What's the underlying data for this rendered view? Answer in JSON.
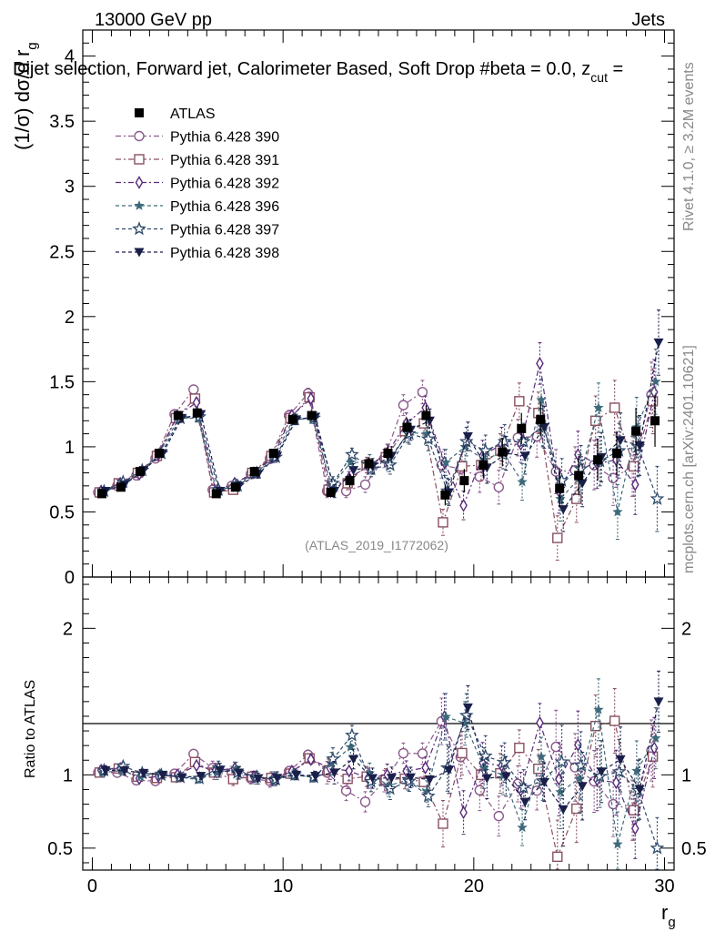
{
  "header": {
    "energy": "13000 GeV pp",
    "category": "Jets",
    "title": "Dijet selection, Forward jet, Calorimeter Based, Soft Drop #beta = 0.0, z",
    "title_sub": "cut",
    "title_tail": " = ",
    "side_rivet": "Rivet 4.1.0, ≥ 3.2M events",
    "side_mcplots": "mcplots.cern.ch [arXiv:2401.10621]",
    "watermark": "(ATLAS_2019_I1772062)"
  },
  "chart_data": {
    "type": "scatter",
    "xlabel": "r",
    "xlabel_sub": "g",
    "ylabel_main": "(1/σ) dσ/d r",
    "ylabel_main_sub": "g",
    "ylabel_ratio": "Ratio to ATLAS",
    "xlim": [
      -0.5,
      30.5
    ],
    "ylim_main": [
      0,
      4.2
    ],
    "ylim_ratio": [
      0.35,
      2.35
    ],
    "x_ticks": [
      "0",
      "10",
      "20",
      "30"
    ],
    "y_ticks_main": [
      "0",
      "0.5",
      "1",
      "1.5",
      "2",
      "2.5",
      "3",
      "3.5",
      "4"
    ],
    "y_ticks_ratio": [
      "0.5",
      "1",
      "2"
    ],
    "x": [
      0.5,
      1.5,
      2.5,
      3.5,
      4.5,
      5.5,
      6.5,
      7.5,
      8.5,
      9.5,
      10.5,
      11.5,
      12.5,
      13.5,
      14.5,
      15.5,
      16.5,
      17.5,
      18.5,
      19.5,
      20.5,
      21.5,
      22.5,
      23.5,
      24.5,
      25.5,
      26.5,
      27.5,
      28.5,
      29.5
    ],
    "data": {
      "name": "ATLAS",
      "values": [
        0.64,
        0.69,
        0.81,
        0.95,
        1.24,
        1.26,
        0.64,
        0.69,
        0.81,
        0.95,
        1.21,
        1.24,
        0.65,
        0.74,
        0.87,
        0.95,
        1.15,
        1.24,
        0.63,
        0.74,
        0.86,
        0.96,
        1.14,
        1.21,
        0.68,
        0.78,
        0.9,
        0.95,
        1.12,
        1.2
      ],
      "errors": [
        0.02,
        0.02,
        0.02,
        0.02,
        0.03,
        0.03,
        0.03,
        0.03,
        0.03,
        0.03,
        0.04,
        0.04,
        0.04,
        0.05,
        0.05,
        0.06,
        0.07,
        0.08,
        0.08,
        0.09,
        0.1,
        0.11,
        0.12,
        0.13,
        0.14,
        0.15,
        0.16,
        0.17,
        0.18,
        0.2
      ]
    },
    "series": [
      {
        "name": "Pythia 6.428 390",
        "color": "#8b5a8c",
        "marker": "circle-open",
        "dash": "6 3 2 3",
        "values": [
          0.65,
          0.7,
          0.78,
          0.91,
          1.25,
          1.44,
          0.67,
          0.7,
          0.79,
          0.91,
          1.24,
          1.41,
          0.66,
          0.66,
          0.71,
          0.91,
          1.32,
          1.42,
          0.86,
          0.83,
          0.77,
          0.69,
          1.07,
          1.08,
          0.81,
          0.82,
          0.86,
          0.76,
          0.85,
          1.4
        ],
        "errors": [
          0.02,
          0.02,
          0.02,
          0.02,
          0.03,
          0.03,
          0.03,
          0.03,
          0.03,
          0.04,
          0.04,
          0.04,
          0.05,
          0.05,
          0.06,
          0.07,
          0.08,
          0.09,
          0.1,
          0.11,
          0.12,
          0.13,
          0.14,
          0.16,
          0.17,
          0.18,
          0.19,
          0.21,
          0.23,
          0.25
        ]
      },
      {
        "name": "Pythia 6.428 391",
        "color": "#8a5060",
        "marker": "square-open",
        "dash": "6 3 2 3",
        "values": [
          0.65,
          0.72,
          0.8,
          0.93,
          1.22,
          1.37,
          0.65,
          0.67,
          0.8,
          0.93,
          1.22,
          1.38,
          0.67,
          0.72,
          0.86,
          0.92,
          1.12,
          1.18,
          0.42,
          0.85,
          0.86,
          0.97,
          1.35,
          1.26,
          0.3,
          0.6,
          1.2,
          1.3,
          0.85,
          1.35
        ],
        "errors": [
          0.02,
          0.02,
          0.02,
          0.02,
          0.03,
          0.03,
          0.03,
          0.03,
          0.03,
          0.04,
          0.04,
          0.04,
          0.05,
          0.05,
          0.06,
          0.07,
          0.08,
          0.09,
          0.1,
          0.11,
          0.12,
          0.13,
          0.14,
          0.16,
          0.17,
          0.18,
          0.19,
          0.21,
          0.23,
          0.25
        ]
      },
      {
        "name": "Pythia 6.428 392",
        "color": "#5a2a7a",
        "marker": "diamond-open",
        "dash": "6 3 2 3",
        "values": [
          0.66,
          0.72,
          0.79,
          0.94,
          1.24,
          1.34,
          0.66,
          0.72,
          0.8,
          0.92,
          1.24,
          1.37,
          0.68,
          0.76,
          0.85,
          0.95,
          1.18,
          1.3,
          0.88,
          0.55,
          0.93,
          1.02,
          1.02,
          1.64,
          0.66,
          0.94,
          0.87,
          0.9,
          0.71,
          1.42
        ],
        "errors": [
          0.02,
          0.02,
          0.02,
          0.02,
          0.03,
          0.03,
          0.03,
          0.03,
          0.03,
          0.04,
          0.04,
          0.04,
          0.05,
          0.05,
          0.06,
          0.07,
          0.08,
          0.09,
          0.1,
          0.11,
          0.12,
          0.13,
          0.14,
          0.16,
          0.17,
          0.18,
          0.19,
          0.21,
          0.23,
          0.25
        ]
      },
      {
        "name": "Pythia 6.428 396",
        "color": "#3d6a7a",
        "marker": "star-full",
        "dash": "4 3",
        "values": [
          0.65,
          0.71,
          0.8,
          0.96,
          1.22,
          1.22,
          0.65,
          0.72,
          0.79,
          0.93,
          1.21,
          1.22,
          0.7,
          0.88,
          0.88,
          0.88,
          1.11,
          1.1,
          0.88,
          1.0,
          0.9,
          0.96,
          0.73,
          1.36,
          0.6,
          0.76,
          1.3,
          0.5,
          1.15,
          1.5
        ],
        "errors": [
          0.02,
          0.02,
          0.02,
          0.02,
          0.03,
          0.03,
          0.03,
          0.03,
          0.03,
          0.04,
          0.04,
          0.04,
          0.05,
          0.05,
          0.06,
          0.07,
          0.08,
          0.09,
          0.1,
          0.11,
          0.12,
          0.13,
          0.14,
          0.16,
          0.17,
          0.18,
          0.19,
          0.21,
          0.23,
          0.25
        ]
      },
      {
        "name": "Pythia 6.428 397",
        "color": "#2e4a6a",
        "marker": "star-open",
        "dash": "4 3",
        "values": [
          0.66,
          0.73,
          0.82,
          0.95,
          1.22,
          1.23,
          0.67,
          0.7,
          0.8,
          0.92,
          1.21,
          1.22,
          0.72,
          0.94,
          0.83,
          0.86,
          1.1,
          1.06,
          0.66,
          1.04,
          0.97,
          1.04,
          1.04,
          1.16,
          0.74,
          0.83,
          0.89,
          0.97,
          1.0,
          0.6
        ],
        "errors": [
          0.02,
          0.02,
          0.02,
          0.02,
          0.03,
          0.03,
          0.03,
          0.03,
          0.03,
          0.04,
          0.04,
          0.04,
          0.05,
          0.05,
          0.06,
          0.07,
          0.08,
          0.09,
          0.1,
          0.11,
          0.12,
          0.13,
          0.14,
          0.16,
          0.17,
          0.18,
          0.19,
          0.21,
          0.23,
          0.25
        ]
      },
      {
        "name": "Pythia 6.428 398",
        "color": "#1a1f4a",
        "marker": "triangle-down",
        "dash": "4 3",
        "values": [
          0.66,
          0.71,
          0.82,
          0.95,
          1.22,
          1.25,
          0.66,
          0.7,
          0.79,
          0.93,
          1.21,
          1.23,
          0.66,
          0.82,
          0.85,
          0.93,
          1.13,
          1.2,
          0.65,
          1.08,
          0.84,
          0.95,
          0.93,
          1.15,
          0.52,
          0.72,
          0.92,
          1.05,
          1.01,
          1.8
        ],
        "errors": [
          0.02,
          0.02,
          0.02,
          0.02,
          0.03,
          0.03,
          0.03,
          0.03,
          0.03,
          0.04,
          0.04,
          0.04,
          0.05,
          0.05,
          0.06,
          0.07,
          0.08,
          0.09,
          0.1,
          0.11,
          0.12,
          0.13,
          0.14,
          0.16,
          0.17,
          0.18,
          0.19,
          0.21,
          0.23,
          0.25
        ]
      }
    ]
  }
}
